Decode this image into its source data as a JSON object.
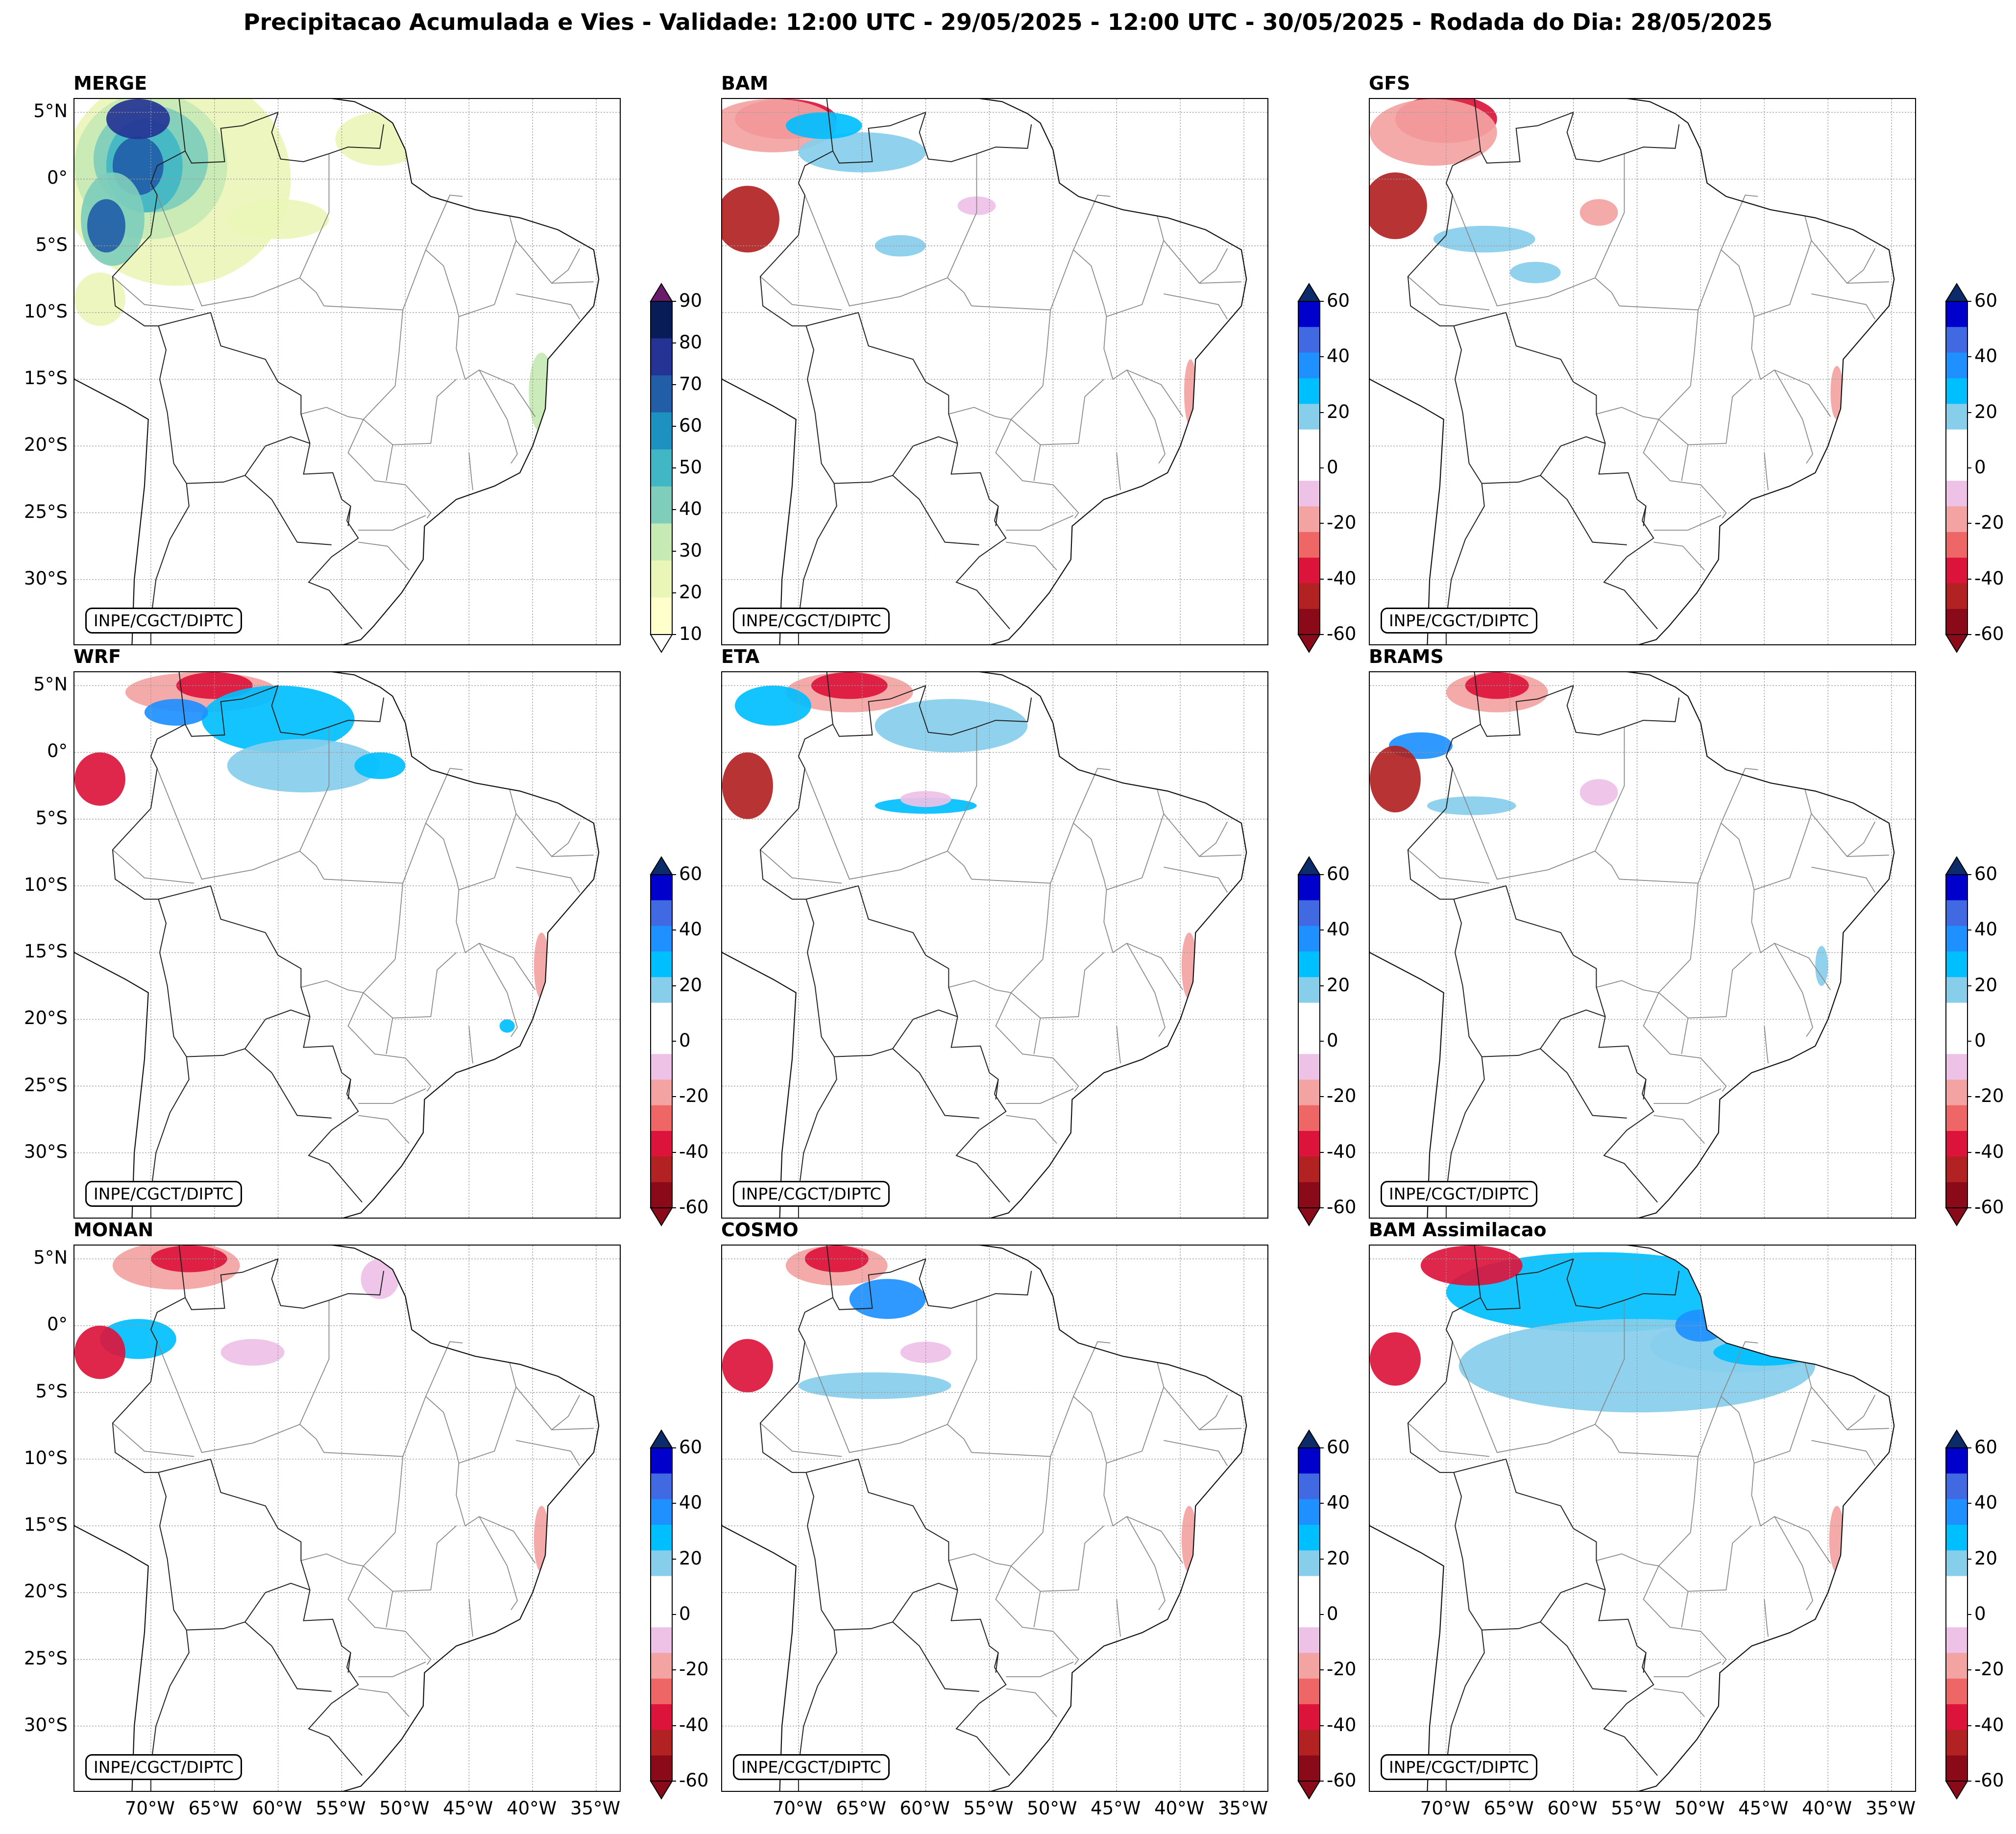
{
  "figure": {
    "title": "Precipitacao Acumulada e Vies - Validade: 12:00 UTC - 29/05/2025 - 12:00 UTC - 30/05/2025 - Rodada do Dia: 28/05/2025",
    "credit": "INPE/CGCT/DIPTC"
  },
  "axes": {
    "lat_labels": [
      "5°N",
      "0°",
      "5°S",
      "10°S",
      "15°S",
      "20°S",
      "25°S",
      "30°S"
    ],
    "lon_labels": [
      "70°W",
      "65°W",
      "60°W",
      "55°W",
      "50°W",
      "45°W",
      "40°W",
      "35°W"
    ]
  },
  "panels": [
    {
      "title": "MERGE",
      "kind": "precip"
    },
    {
      "title": "BAM",
      "kind": "bias"
    },
    {
      "title": "GFS",
      "kind": "bias"
    },
    {
      "title": "WRF",
      "kind": "bias"
    },
    {
      "title": "ETA",
      "kind": "bias"
    },
    {
      "title": "BRAMS",
      "kind": "bias"
    },
    {
      "title": "MONAN",
      "kind": "bias"
    },
    {
      "title": "COSMO",
      "kind": "bias"
    },
    {
      "title": "BAM Assimilacao",
      "kind": "bias"
    }
  ],
  "colorbars": {
    "precip": {
      "labels": [
        "90",
        "80",
        "70",
        "60",
        "50",
        "40",
        "30",
        "20",
        "10"
      ],
      "colors": [
        "#ffffcc",
        "#eaf5b8",
        "#c7e9b4",
        "#7fcdbb",
        "#41b6c4",
        "#1d91c0",
        "#225ea8",
        "#253494",
        "#081d58"
      ],
      "over_color": "#6a1b6a",
      "under_color": "#ffffff"
    },
    "bias": {
      "labels": [
        "60",
        "40",
        "20",
        "0",
        "-20",
        "-40",
        "-60"
      ],
      "colors_top_to_bottom": [
        "#0000cd",
        "#4169e1",
        "#1e90ff",
        "#00bfff",
        "#87ceeb",
        "#ffffff",
        "#ffffff",
        "#eec1e7",
        "#f4a3a3",
        "#ee6666",
        "#dc143c",
        "#b22222",
        "#8b0a1a"
      ],
      "over_color": "#0b2b6b",
      "under_color": "#8b0a1a"
    }
  }
}
